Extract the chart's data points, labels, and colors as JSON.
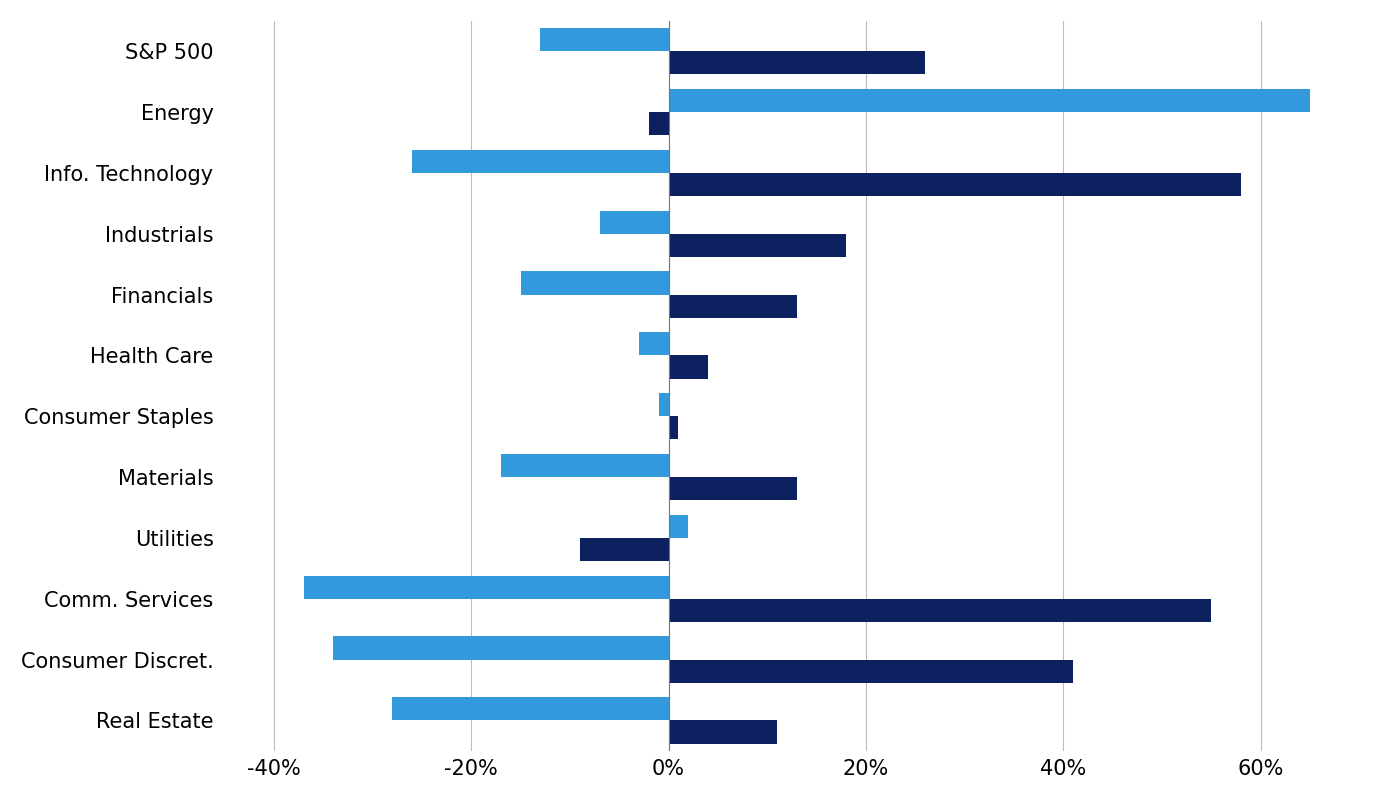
{
  "categories": [
    "S&P 500",
    "Energy",
    "Info. Technology",
    "Industrials",
    "Financials",
    "Health Care",
    "Consumer Staples",
    "Materials",
    "Utilities",
    "Comm. Services",
    "Consumer Discret.",
    "Real Estate"
  ],
  "light_blue_values": [
    -13,
    65,
    -26,
    -7,
    -15,
    -3,
    -1,
    -17,
    2,
    -37,
    -34,
    -28
  ],
  "dark_blue_values": [
    26,
    -2,
    58,
    18,
    13,
    4,
    1,
    13,
    -9,
    55,
    41,
    11
  ],
  "light_blue_color": "#3399DD",
  "dark_blue_color": "#0D2060",
  "xlim": [
    -45,
    70
  ],
  "xticks": [
    -40,
    -20,
    0,
    20,
    40,
    60
  ],
  "xticklabels": [
    "-40%",
    "-20%",
    "0%",
    "20%",
    "40%",
    "60%"
  ],
  "background_color": "#FFFFFF",
  "bar_height": 0.38,
  "grid_color": "#BBBBBB",
  "tick_fontsize": 15,
  "label_fontsize": 15
}
